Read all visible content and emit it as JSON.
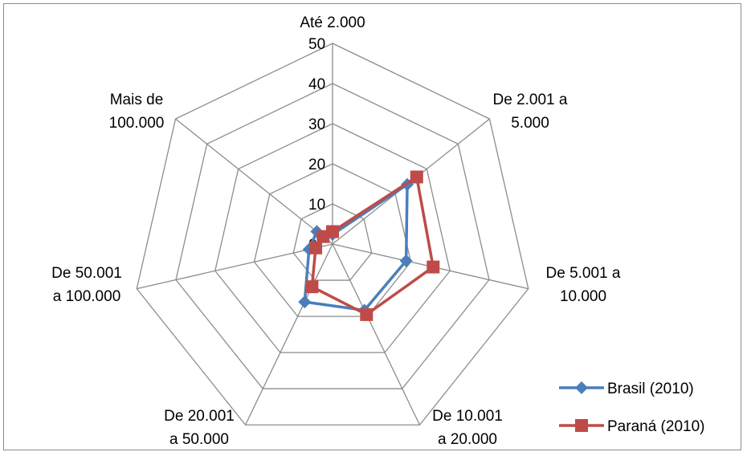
{
  "chart_data": {
    "type": "radar",
    "categories": [
      [
        "Até 2.000"
      ],
      [
        "De 2.001 a",
        "5.000"
      ],
      [
        "De 5.001 a",
        "10.000"
      ],
      [
        "De 10.001",
        "a 20.000"
      ],
      [
        "De 20.001",
        "a 50.000"
      ],
      [
        "De 50.001",
        "a 100.000"
      ],
      [
        "Mais de",
        "100.000"
      ]
    ],
    "rlim": [
      0,
      50
    ],
    "ticks": [
      "0",
      "10",
      "20",
      "30",
      "40",
      "50"
    ],
    "series": [
      {
        "name": "Brasil (2010)",
        "color": "#4a7ebb",
        "marker": "diamond",
        "values": [
          2.4,
          23.8,
          18.8,
          18.3,
          16.0,
          6.0,
          5.0
        ]
      },
      {
        "name": "Paraná (2010)",
        "color": "#be4b48",
        "marker": "square",
        "values": [
          3.1,
          26.8,
          25.7,
          19.5,
          11.8,
          4.3,
          3.0
        ]
      }
    ],
    "legend": "right",
    "grid": true
  }
}
